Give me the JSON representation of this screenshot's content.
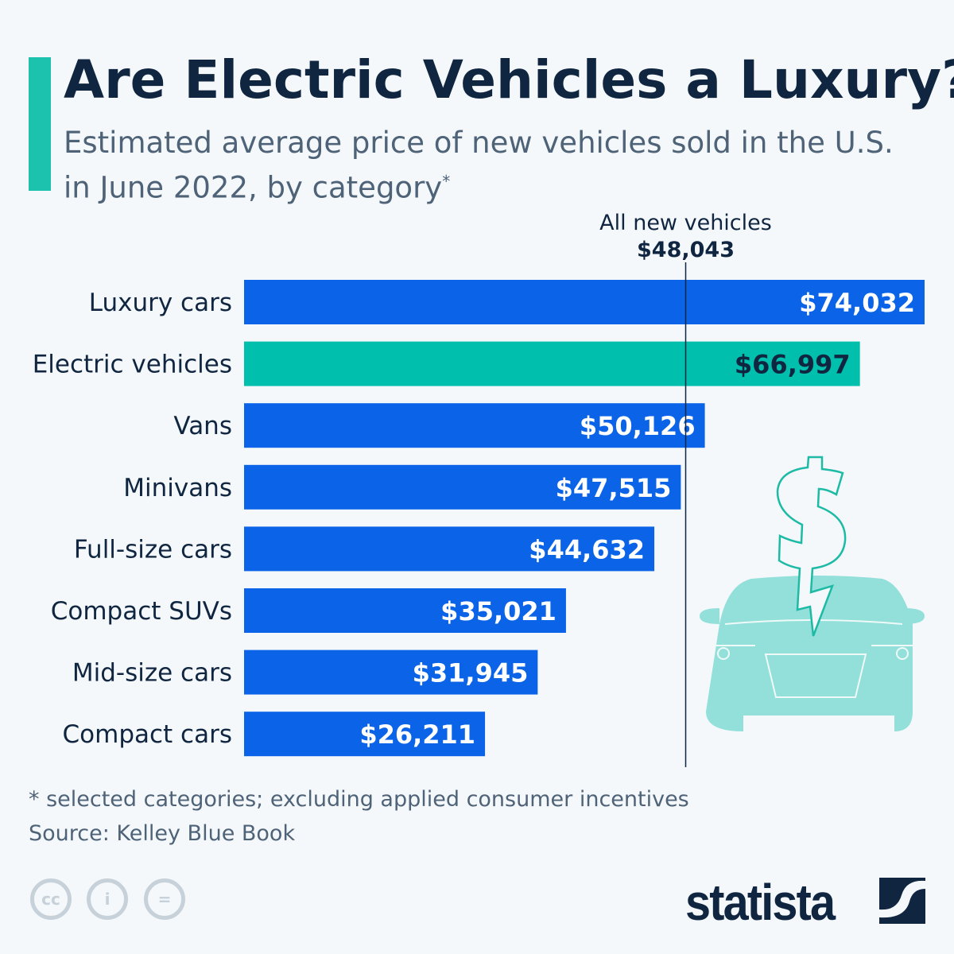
{
  "header": {
    "title": "Are Electric Vehicles a Luxury?",
    "subtitle": "Estimated average price of new vehicles sold in the U.S. in June 2022, by category",
    "subtitle_mark": "*"
  },
  "chart_data": {
    "type": "bar",
    "orientation": "horizontal",
    "categories": [
      "Luxury cars",
      "Electric vehicles",
      "Vans",
      "Minivans",
      "Full-size cars",
      "Compact SUVs",
      "Mid-size cars",
      "Compact cars"
    ],
    "values": [
      74032,
      66997,
      50126,
      47515,
      44632,
      35021,
      31945,
      26211
    ],
    "labels": [
      "$74,032",
      "$66,997",
      "$50,126",
      "$47,515",
      "$44,632",
      "$35,021",
      "$31,945",
      "$26,211"
    ],
    "highlight": "Electric vehicles",
    "colors": {
      "bar": "#0b64e8",
      "highlight": "#00bfad",
      "reference_line": "#0f2540"
    },
    "xlim": [
      0,
      74032
    ],
    "grid": false,
    "reference_line": {
      "value": 48043,
      "label": "All new vehicles",
      "value_label": "$48,043"
    }
  },
  "footer": {
    "note": "* selected categories; excluding applied consumer incentives",
    "source": "Source: Kelley Blue Book",
    "brand": "statista",
    "license_icons": [
      "cc-icon",
      "attribution-icon",
      "no-derivatives-icon"
    ]
  }
}
